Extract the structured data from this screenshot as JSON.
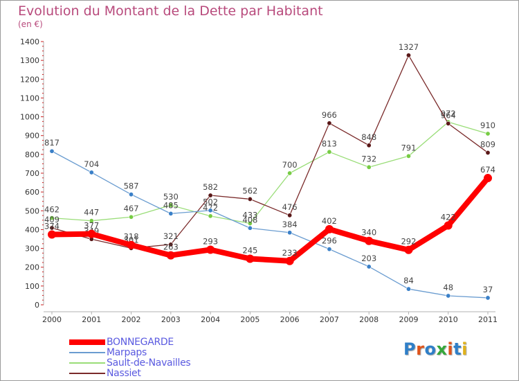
{
  "title": "Evolution du Montant de la Dette par Habitant",
  "subtitle": "(en €)",
  "logo": {
    "text": "Proxiti",
    "letter_colors": [
      "#2f7fc8",
      "#e0551c",
      "#2f7fc8",
      "#35a83a",
      "#e0551c",
      "#2f7fc8",
      "#e0b21c"
    ]
  },
  "chart_data": {
    "type": "line",
    "x": [
      "2000",
      "2001",
      "2002",
      "2003",
      "2004",
      "2005",
      "2006",
      "2007",
      "2008",
      "2009",
      "2010",
      "2011"
    ],
    "ylim": [
      0,
      1400
    ],
    "yticks": [
      0,
      100,
      200,
      300,
      400,
      500,
      600,
      700,
      800,
      900,
      1000,
      1100,
      1200,
      1300,
      1400
    ],
    "grid": false,
    "legend_position": "bottom-left",
    "series": [
      {
        "name": "Sault-de-Navailles",
        "color": "#99dd77",
        "dot": "#77cc44",
        "values": [
          462,
          447,
          467,
          530,
          472,
          433,
          700,
          813,
          732,
          791,
          972,
          910
        ],
        "labels": [
          "462",
          "447",
          "467",
          "530",
          "472",
          "433",
          "700",
          "813",
          "732",
          "791",
          "972",
          "910"
        ]
      },
      {
        "name": "Nassiet",
        "color": "#7a2a2a",
        "dot": "#5a1818",
        "values": [
          409,
          349,
          301,
          321,
          582,
          562,
          476,
          966,
          848,
          1327,
          964,
          809
        ],
        "labels": [
          "409",
          "349",
          "301",
          "321",
          "582",
          "562",
          "476",
          "966",
          "848",
          "1327",
          "964",
          "809"
        ]
      },
      {
        "name": "Marpaps",
        "color": "#6a9cd0",
        "dot": "#3a80c8",
        "values": [
          817,
          704,
          587,
          485,
          502,
          408,
          384,
          296,
          203,
          84,
          48,
          37
        ],
        "labels": [
          "817",
          "704",
          "587",
          "485",
          "502",
          "408",
          "384",
          "296",
          "203",
          "84",
          "48",
          "37"
        ]
      },
      {
        "name": "BONNEGARDE",
        "color": "#ff0000",
        "dot": "#ff0000",
        "values": [
          374,
          377,
          318,
          263,
          293,
          245,
          233,
          402,
          340,
          292,
          422,
          674
        ],
        "labels": [
          "374",
          "377",
          "318",
          "263",
          "293",
          "245",
          "233",
          "402",
          "340",
          "292",
          "422",
          "674"
        ]
      }
    ]
  },
  "legend": [
    {
      "name": "BONNEGARDE",
      "color": "#ff0000"
    },
    {
      "name": "Marpaps",
      "color": "#6a9cd0"
    },
    {
      "name": "Sault-de-Navailles",
      "color": "#99dd77"
    },
    {
      "name": "Nassiet",
      "color": "#7a2a2a"
    }
  ]
}
